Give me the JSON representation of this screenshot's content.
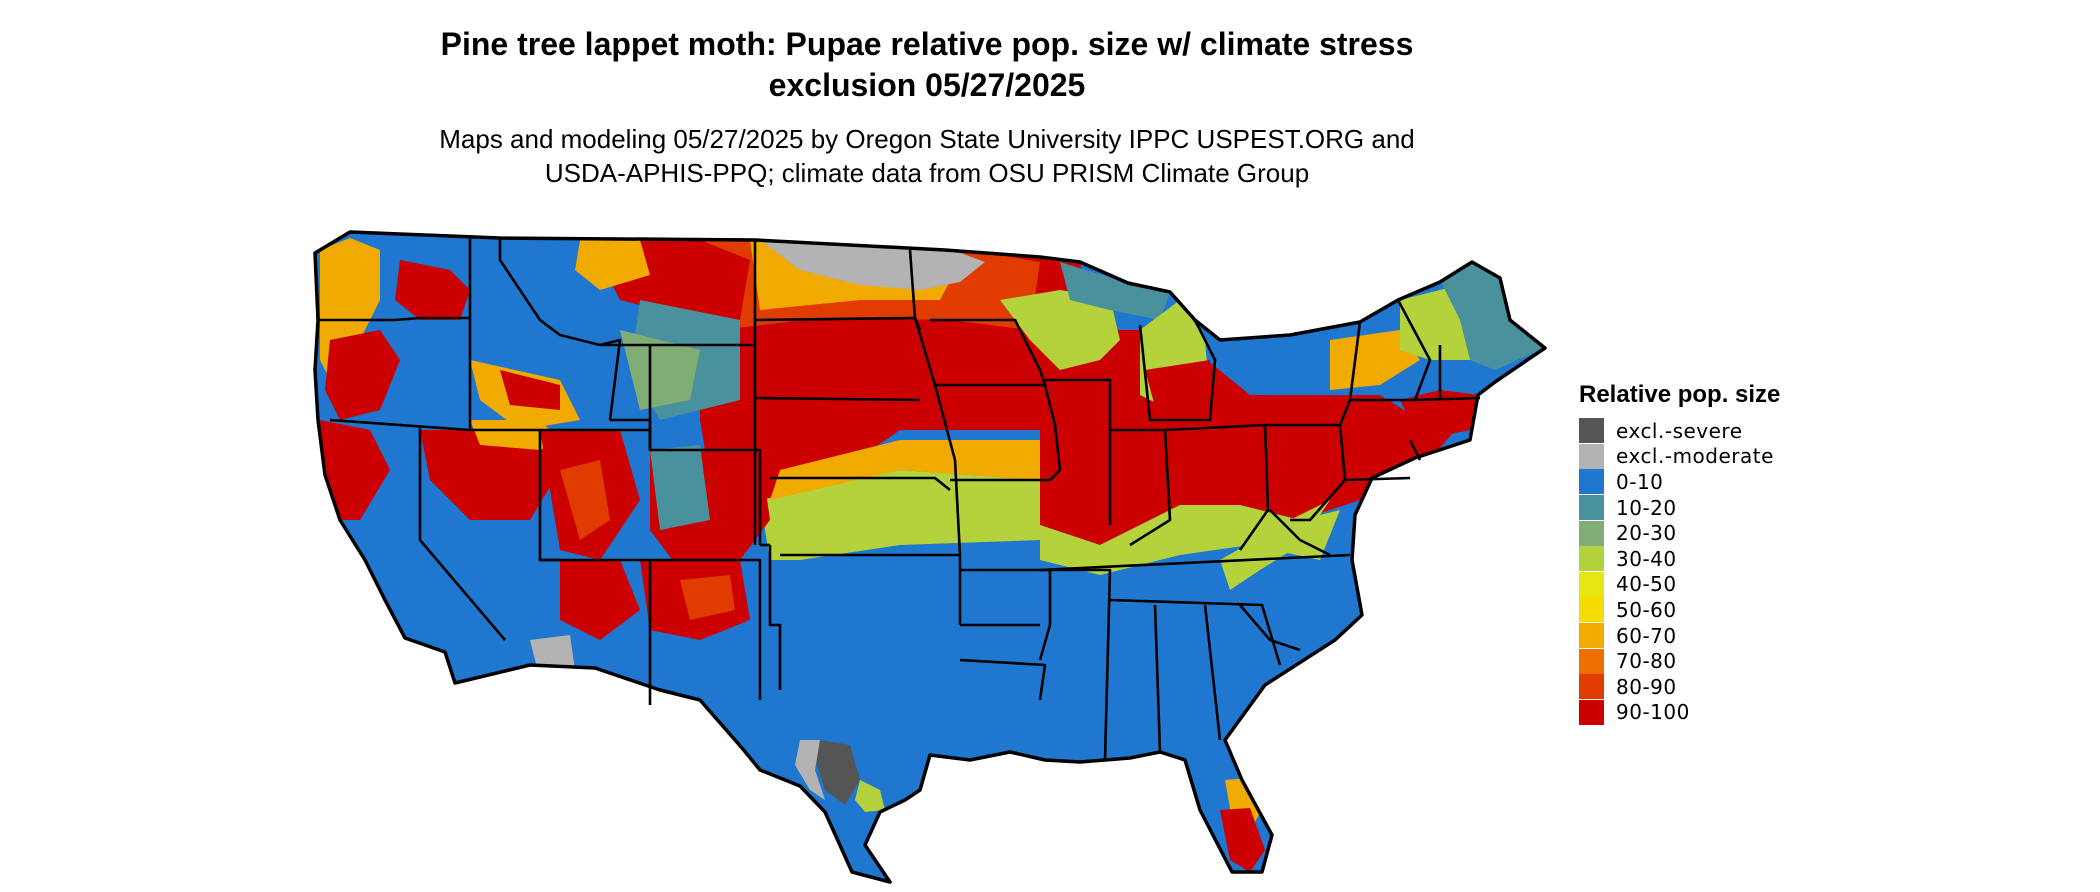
{
  "title_line1": "Pine tree lappet moth: Pupae relative pop. size w/ climate stress",
  "title_line2": "exclusion 05/27/2025",
  "subtitle_line1": "Maps and modeling 05/27/2025 by Oregon State University IPPC USPEST.ORG and",
  "subtitle_line2": "USDA-APHIS-PPQ; climate data from OSU PRISM Climate Group",
  "legend": {
    "title": "Relative pop. size",
    "items": [
      {
        "label": "excl.-severe",
        "color": "#555555"
      },
      {
        "label": "excl.-moderate",
        "color": "#b3b3b3"
      },
      {
        "label": "0-10",
        "color": "#1f77d0"
      },
      {
        "label": "10-20",
        "color": "#4a919e"
      },
      {
        "label": "20-30",
        "color": "#80ad74"
      },
      {
        "label": "30-40",
        "color": "#b4d23c"
      },
      {
        "label": "40-50",
        "color": "#e6e614"
      },
      {
        "label": "50-60",
        "color": "#f5dc00"
      },
      {
        "label": "60-70",
        "color": "#f0aa00"
      },
      {
        "label": "70-80",
        "color": "#ec7000"
      },
      {
        "label": "80-90",
        "color": "#e03c00"
      },
      {
        "label": "90-100",
        "color": "#cc0000"
      }
    ]
  }
}
